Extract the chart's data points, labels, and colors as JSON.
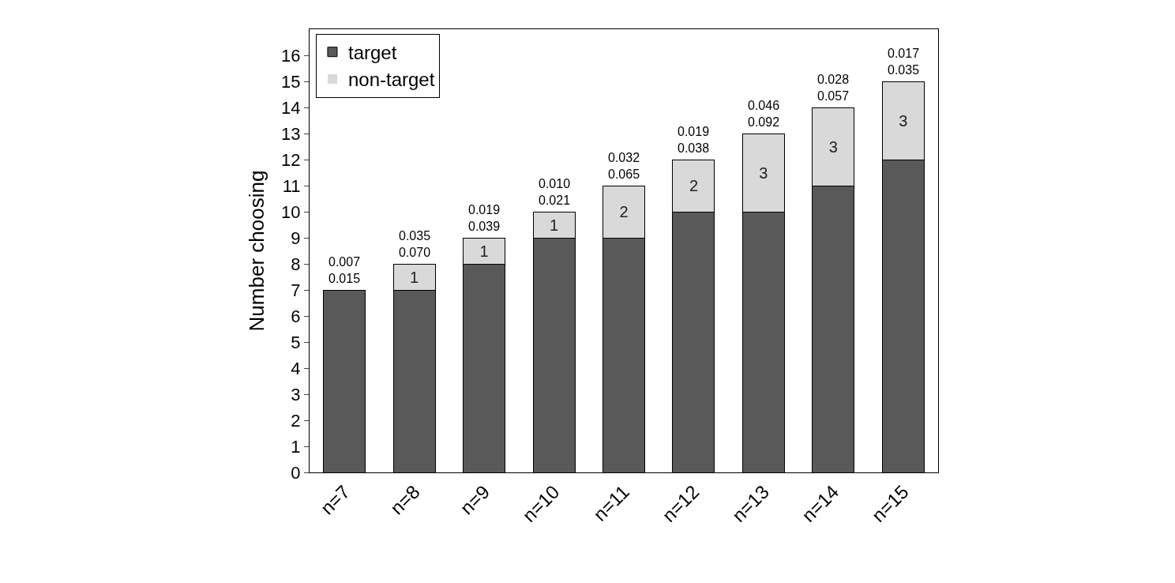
{
  "chart_data": {
    "type": "bar",
    "stacked": true,
    "ylabel": "Number choosing",
    "categories": [
      "n=7",
      "n=8",
      "n=9",
      "n=10",
      "n=11",
      "n=12",
      "n=13",
      "n=14",
      "n=15"
    ],
    "series": [
      {
        "name": "target",
        "color": "#595959",
        "values": [
          7,
          7,
          8,
          9,
          9,
          10,
          10,
          11,
          12
        ]
      },
      {
        "name": "non-target",
        "color": "#d9d9d9",
        "values": [
          0,
          1,
          1,
          1,
          2,
          2,
          3,
          3,
          3
        ],
        "value_labels": [
          null,
          "1",
          "1",
          "1",
          "2",
          "2",
          "3",
          "3",
          "3"
        ]
      }
    ],
    "annotations": [
      {
        "text": "0.007\n0.015",
        "x": "n=7",
        "y": 7
      },
      {
        "text": "0.035\n0.070",
        "x": "n=8",
        "y": 8
      },
      {
        "text": "0.019\n0.039",
        "x": "n=9",
        "y": 9
      },
      {
        "text": "0.010\n0.021",
        "x": "n=10",
        "y": 10
      },
      {
        "text": "0.032\n0.065",
        "x": "n=11",
        "y": 11
      },
      {
        "text": "0.019\n0.038",
        "x": "n=12",
        "y": 12
      },
      {
        "text": "0.046\n0.092",
        "x": "n=13",
        "y": 13
      },
      {
        "text": "0.028\n0.057",
        "x": "n=14",
        "y": 14
      },
      {
        "text": "0.017\n0.035",
        "x": "n=15",
        "y": 15
      }
    ],
    "ylim": [
      0,
      17
    ],
    "yticks": [
      0,
      1,
      2,
      3,
      4,
      5,
      6,
      7,
      8,
      9,
      10,
      11,
      12,
      13,
      14,
      15,
      16
    ],
    "grid": false,
    "legend": "top left"
  }
}
